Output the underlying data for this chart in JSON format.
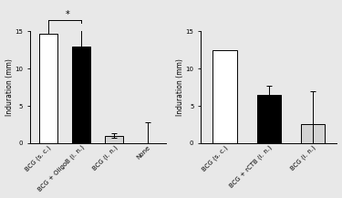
{
  "panel1": {
    "categories": [
      "BCG (s. c.)",
      "BCG + OligoB (i. n.)",
      "BCG (i. n.)",
      "None"
    ],
    "values": [
      14.7,
      13.0,
      1.0,
      0.0
    ],
    "errors": [
      0.0,
      3.2,
      0.3,
      2.8
    ],
    "colors": [
      "white",
      "black",
      "lightgray",
      "white"
    ],
    "edge_colors": [
      "black",
      "black",
      "black",
      "none"
    ],
    "ylabel": "Induration (mm)",
    "ylim": [
      0,
      15
    ],
    "yticks": [
      0,
      5,
      10,
      15
    ]
  },
  "panel2": {
    "categories": [
      "BCG (s. c.)",
      "BCG + rCTB (i. n.)",
      "BCG (i. n.)"
    ],
    "values": [
      12.5,
      6.5,
      2.5
    ],
    "errors": [
      0.0,
      1.2,
      4.5
    ],
    "colors": [
      "white",
      "black",
      "lightgray"
    ],
    "edge_colors": [
      "black",
      "black",
      "black"
    ],
    "ylabel": "Induration (mm)",
    "ylim": [
      0,
      15
    ],
    "yticks": [
      0,
      5,
      10,
      15
    ]
  },
  "background_color": "#e8e8e8",
  "tick_fontsize": 5.0,
  "label_fontsize": 5.5,
  "bar_width": 0.55
}
